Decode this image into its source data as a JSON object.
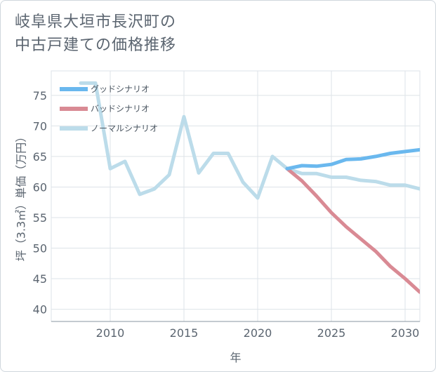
{
  "chart_data": {
    "type": "line",
    "title_lines": [
      "岐阜県大垣市長沢町の",
      "中古戸建ての価格推移"
    ],
    "xlabel": "年",
    "ylabel": "坪（3.3㎡）単価（万円）",
    "xlim": [
      2006,
      2031
    ],
    "ylim": [
      38,
      79
    ],
    "x_ticks": [
      2010,
      2015,
      2020,
      2025,
      2030
    ],
    "y_ticks": [
      40,
      45,
      50,
      55,
      60,
      65,
      70,
      75
    ],
    "grid": true,
    "legend_position": "top-left",
    "series": [
      {
        "name": "グッドシナリオ",
        "color": "#6ab8ee",
        "x": [
          2022,
          2023,
          2024,
          2025,
          2026,
          2027,
          2028,
          2029,
          2030,
          2031
        ],
        "values": [
          63.0,
          63.5,
          63.4,
          63.7,
          64.5,
          64.6,
          65.0,
          65.5,
          65.8,
          66.1
        ]
      },
      {
        "name": "バッドシナリオ",
        "color": "#d98a94",
        "x": [
          2022,
          2023,
          2024,
          2025,
          2026,
          2027,
          2028,
          2029,
          2030,
          2031
        ],
        "values": [
          63.0,
          61.0,
          58.5,
          55.8,
          53.5,
          51.5,
          49.5,
          47.0,
          45.0,
          42.8
        ]
      },
      {
        "name": "ノーマルシナリオ",
        "color": "#bcdcea",
        "x": [
          2008,
          2009,
          2010,
          2011,
          2012,
          2013,
          2014,
          2015,
          2016,
          2017,
          2018,
          2019,
          2020,
          2021,
          2022,
          2023,
          2024,
          2025,
          2026,
          2027,
          2028,
          2029,
          2030,
          2031
        ],
        "values": [
          77.0,
          77.0,
          63.0,
          64.2,
          58.8,
          59.7,
          62.0,
          71.5,
          62.3,
          65.5,
          65.5,
          60.8,
          58.2,
          65.0,
          63.0,
          62.2,
          62.2,
          61.6,
          61.6,
          61.1,
          60.9,
          60.3,
          60.3,
          59.7
        ]
      }
    ]
  }
}
